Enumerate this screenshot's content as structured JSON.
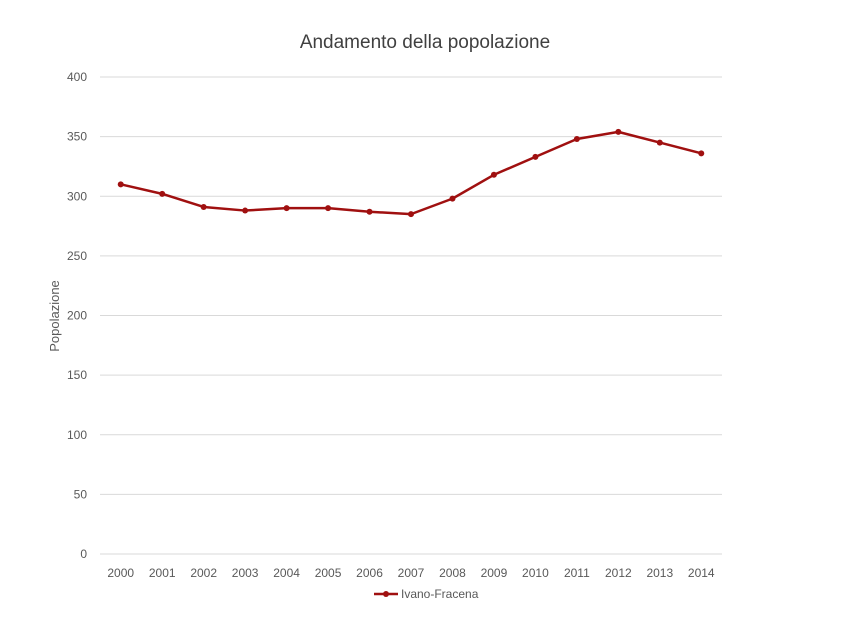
{
  "chart_data": {
    "type": "line",
    "title": "Andamento della popolazione",
    "xlabel": "",
    "ylabel": "Popolazione",
    "ylim": [
      0,
      400
    ],
    "yticks": [
      "0",
      "50",
      "100",
      "150",
      "200",
      "250",
      "300",
      "350",
      "400"
    ],
    "categories": [
      "2000",
      "2001",
      "2002",
      "2003",
      "2004",
      "2005",
      "2006",
      "2007",
      "2008",
      "2009",
      "2010",
      "2011",
      "2012",
      "2013",
      "2014"
    ],
    "series": [
      {
        "name": "Ivano-Fracena",
        "color": "#a01010",
        "values": [
          310,
          302,
          291,
          288,
          290,
          290,
          287,
          285,
          298,
          318,
          333,
          348,
          354,
          345,
          336
        ]
      }
    ],
    "grid": true,
    "legend": "bottom"
  }
}
